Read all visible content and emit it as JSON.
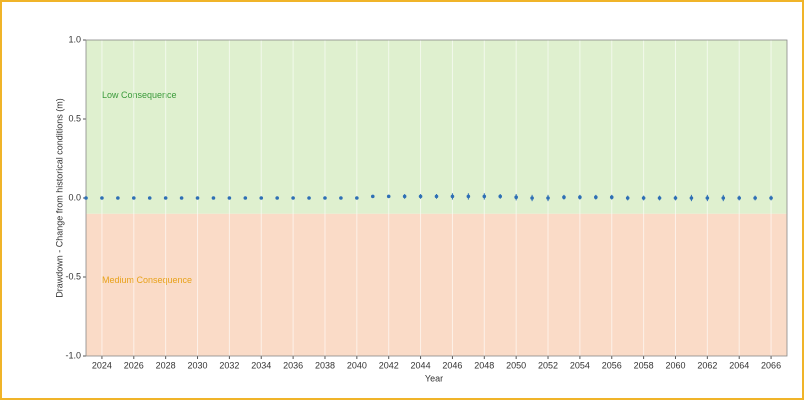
{
  "chart_data": {
    "type": "scatter",
    "x_label": "Year",
    "y_label": "Drawdown - Change from historical conditions (m)",
    "x": [
      2023,
      2024,
      2025,
      2026,
      2027,
      2028,
      2029,
      2030,
      2031,
      2032,
      2033,
      2034,
      2035,
      2036,
      2037,
      2038,
      2039,
      2040,
      2041,
      2042,
      2043,
      2044,
      2045,
      2046,
      2047,
      2048,
      2049,
      2050,
      2051,
      2052,
      2053,
      2054,
      2055,
      2056,
      2057,
      2058,
      2059,
      2060,
      2061,
      2062,
      2063,
      2064,
      2065,
      2066
    ],
    "values": [
      0,
      0,
      0,
      0,
      0,
      0,
      0,
      0,
      0,
      0,
      0,
      0,
      0,
      0,
      0,
      0,
      0,
      0,
      0.01,
      0.01,
      0.01,
      0.01,
      0.01,
      0.01,
      0.01,
      0.01,
      0.01,
      0.005,
      0,
      0,
      0.005,
      0.005,
      0.005,
      0.005,
      0,
      0,
      0,
      0,
      0,
      0,
      0,
      0,
      0,
      0
    ],
    "errors": [
      0,
      0,
      0,
      0,
      0,
      0,
      0,
      0,
      0,
      0,
      0,
      0,
      0,
      0,
      0,
      0,
      0,
      0,
      0.005,
      0.01,
      0.015,
      0.015,
      0.015,
      0.02,
      0.02,
      0.02,
      0.015,
      0.02,
      0.02,
      0.02,
      0.015,
      0.015,
      0.015,
      0.015,
      0.015,
      0.015,
      0.015,
      0.015,
      0.02,
      0.02,
      0.02,
      0.015,
      0.015,
      0.015
    ],
    "color": "#2e6fb5",
    "xlim": [
      2023,
      2067
    ],
    "xticks": [
      2024,
      2026,
      2028,
      2030,
      2032,
      2034,
      2036,
      2038,
      2040,
      2042,
      2044,
      2046,
      2048,
      2050,
      2052,
      2054,
      2056,
      2058,
      2060,
      2062,
      2064,
      2066
    ],
    "ylim": [
      -1,
      1
    ],
    "yticks": [
      {
        "value": -1,
        "label": "-1.0"
      },
      {
        "value": -0.5,
        "label": "-0.5"
      },
      {
        "value": 0,
        "label": "0.0"
      },
      {
        "value": 0.5,
        "label": "0.5"
      },
      {
        "value": 1,
        "label": "1.0"
      }
    ],
    "grid": true,
    "zones": [
      {
        "label": "Low Consequence",
        "from": -0.1,
        "to": 1,
        "color": "#dff0cf",
        "text_color": "#3a9a3a"
      },
      {
        "label": "Medium Consequence",
        "from": -1,
        "to": -0.1,
        "color": "#fadbc7",
        "text_color": "#e8a21a"
      }
    ]
  }
}
